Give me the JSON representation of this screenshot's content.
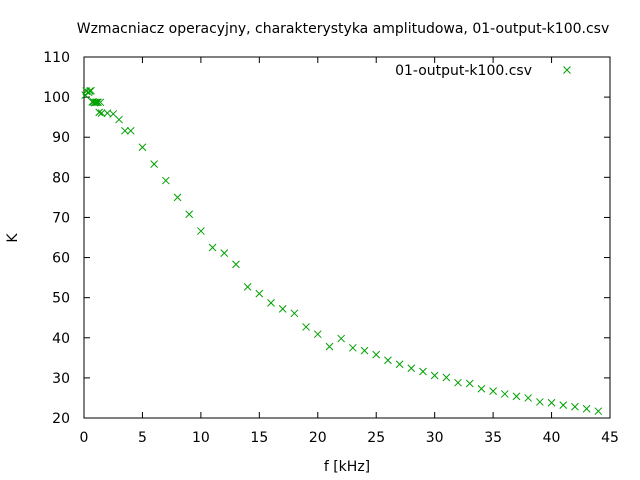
{
  "chart_data": {
    "type": "scatter",
    "title": "Wzmacniacz operacyjny, charakterystyka amplitudowa, 01-output-k100.csv",
    "xlabel": "f [kHz]",
    "ylabel": "K",
    "xlim": [
      0,
      45
    ],
    "ylim": [
      20,
      110
    ],
    "xticks": [
      0,
      5,
      10,
      15,
      20,
      25,
      30,
      35,
      40,
      45
    ],
    "yticks": [
      20,
      30,
      40,
      50,
      60,
      70,
      80,
      90,
      100,
      110
    ],
    "xtick_labels": [
      "0",
      "5",
      "10",
      "15",
      "20",
      "25",
      "30",
      "35",
      "40",
      "45"
    ],
    "ytick_labels": [
      "20",
      "30",
      "40",
      "50",
      "60",
      "70",
      "80",
      "90",
      "100",
      "110"
    ],
    "grid": false,
    "legend_position": "top-right",
    "marker": "x",
    "series": [
      {
        "name": "01-output-k100.csv",
        "color": "#00a000",
        "points": [
          [
            0.1,
            100.5
          ],
          [
            0.2,
            101.5
          ],
          [
            0.4,
            101.2
          ],
          [
            0.5,
            101.5
          ],
          [
            0.6,
            101.6
          ],
          [
            0.7,
            98.8
          ],
          [
            0.8,
            98.8
          ],
          [
            0.9,
            98.6
          ],
          [
            1.0,
            98.7
          ],
          [
            1.1,
            98.7
          ],
          [
            1.2,
            98.7
          ],
          [
            1.3,
            96.2
          ],
          [
            1.4,
            98.7
          ],
          [
            1.5,
            96.0
          ],
          [
            2.0,
            96.0
          ],
          [
            2.5,
            95.8
          ],
          [
            3.0,
            94.4
          ],
          [
            3.5,
            91.6
          ],
          [
            4.0,
            91.6
          ],
          [
            5.0,
            87.5
          ],
          [
            6.0,
            83.3
          ],
          [
            7.0,
            79.2
          ],
          [
            8.0,
            75.0
          ],
          [
            9.0,
            70.8
          ],
          [
            10.0,
            66.6
          ],
          [
            11.0,
            62.5
          ],
          [
            12.0,
            61.1
          ],
          [
            13.0,
            58.3
          ],
          [
            14.0,
            52.7
          ],
          [
            15.0,
            51.0
          ],
          [
            16.0,
            48.7
          ],
          [
            17.0,
            47.2
          ],
          [
            18.0,
            46.1
          ],
          [
            19.0,
            42.7
          ],
          [
            20.0,
            40.9
          ],
          [
            21.0,
            37.8
          ],
          [
            22.0,
            39.8
          ],
          [
            23.0,
            37.5
          ],
          [
            24.0,
            36.8
          ],
          [
            25.0,
            35.8
          ],
          [
            26.0,
            34.4
          ],
          [
            27.0,
            33.4
          ],
          [
            28.0,
            32.4
          ],
          [
            29.0,
            31.6
          ],
          [
            30.0,
            30.6
          ],
          [
            31.0,
            30.1
          ],
          [
            32.0,
            28.8
          ],
          [
            33.0,
            28.6
          ],
          [
            34.0,
            27.3
          ],
          [
            35.0,
            26.7
          ],
          [
            36.0,
            26.0
          ],
          [
            37.0,
            25.4
          ],
          [
            38.0,
            25.0
          ],
          [
            39.0,
            24.0
          ],
          [
            40.0,
            23.8
          ],
          [
            41.0,
            23.2
          ],
          [
            42.0,
            22.8
          ],
          [
            43.0,
            22.3
          ],
          [
            44.0,
            21.7
          ]
        ]
      }
    ]
  }
}
